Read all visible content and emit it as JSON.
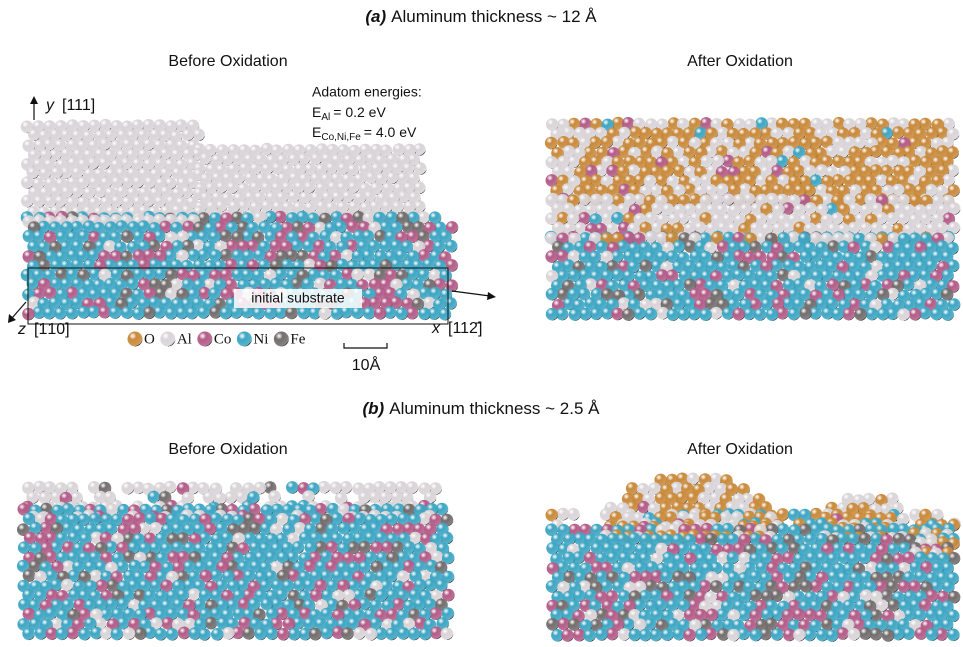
{
  "panel_a": {
    "label": "(a)",
    "title": "Aluminum thickness ~ 12 Å",
    "before": "Before Oxidation",
    "after": "After Oxidation"
  },
  "panel_b": {
    "label": "(b)",
    "title": "Aluminum thickness ~ 2.5 Å",
    "before": "Before Oxidation",
    "after": "After Oxidation"
  },
  "axes": {
    "y": {
      "var": "y",
      "dir": "[111]"
    },
    "x": {
      "var": "x",
      "dir": "[112̄]"
    },
    "z": {
      "var": "z",
      "dir": "[1̄10]"
    }
  },
  "energies": {
    "heading": "Adatom energies:",
    "al": {
      "symbol": "E",
      "sub": "Al",
      "value": "= 0.2 eV"
    },
    "others": {
      "symbol": "E",
      "sub": "Co,Ni,Fe",
      "value": "= 4.0 eV"
    }
  },
  "substrate_label": "initial substrate",
  "legend": [
    {
      "name": "O",
      "color": "#c98a3c"
    },
    {
      "name": "Al",
      "color": "#d9d4d7"
    },
    {
      "name": "Co",
      "color": "#b35c88"
    },
    {
      "name": "Ni",
      "color": "#3ea6c3"
    },
    {
      "name": "Fe",
      "color": "#736d6e"
    }
  ],
  "scale_bar": "10Å"
}
